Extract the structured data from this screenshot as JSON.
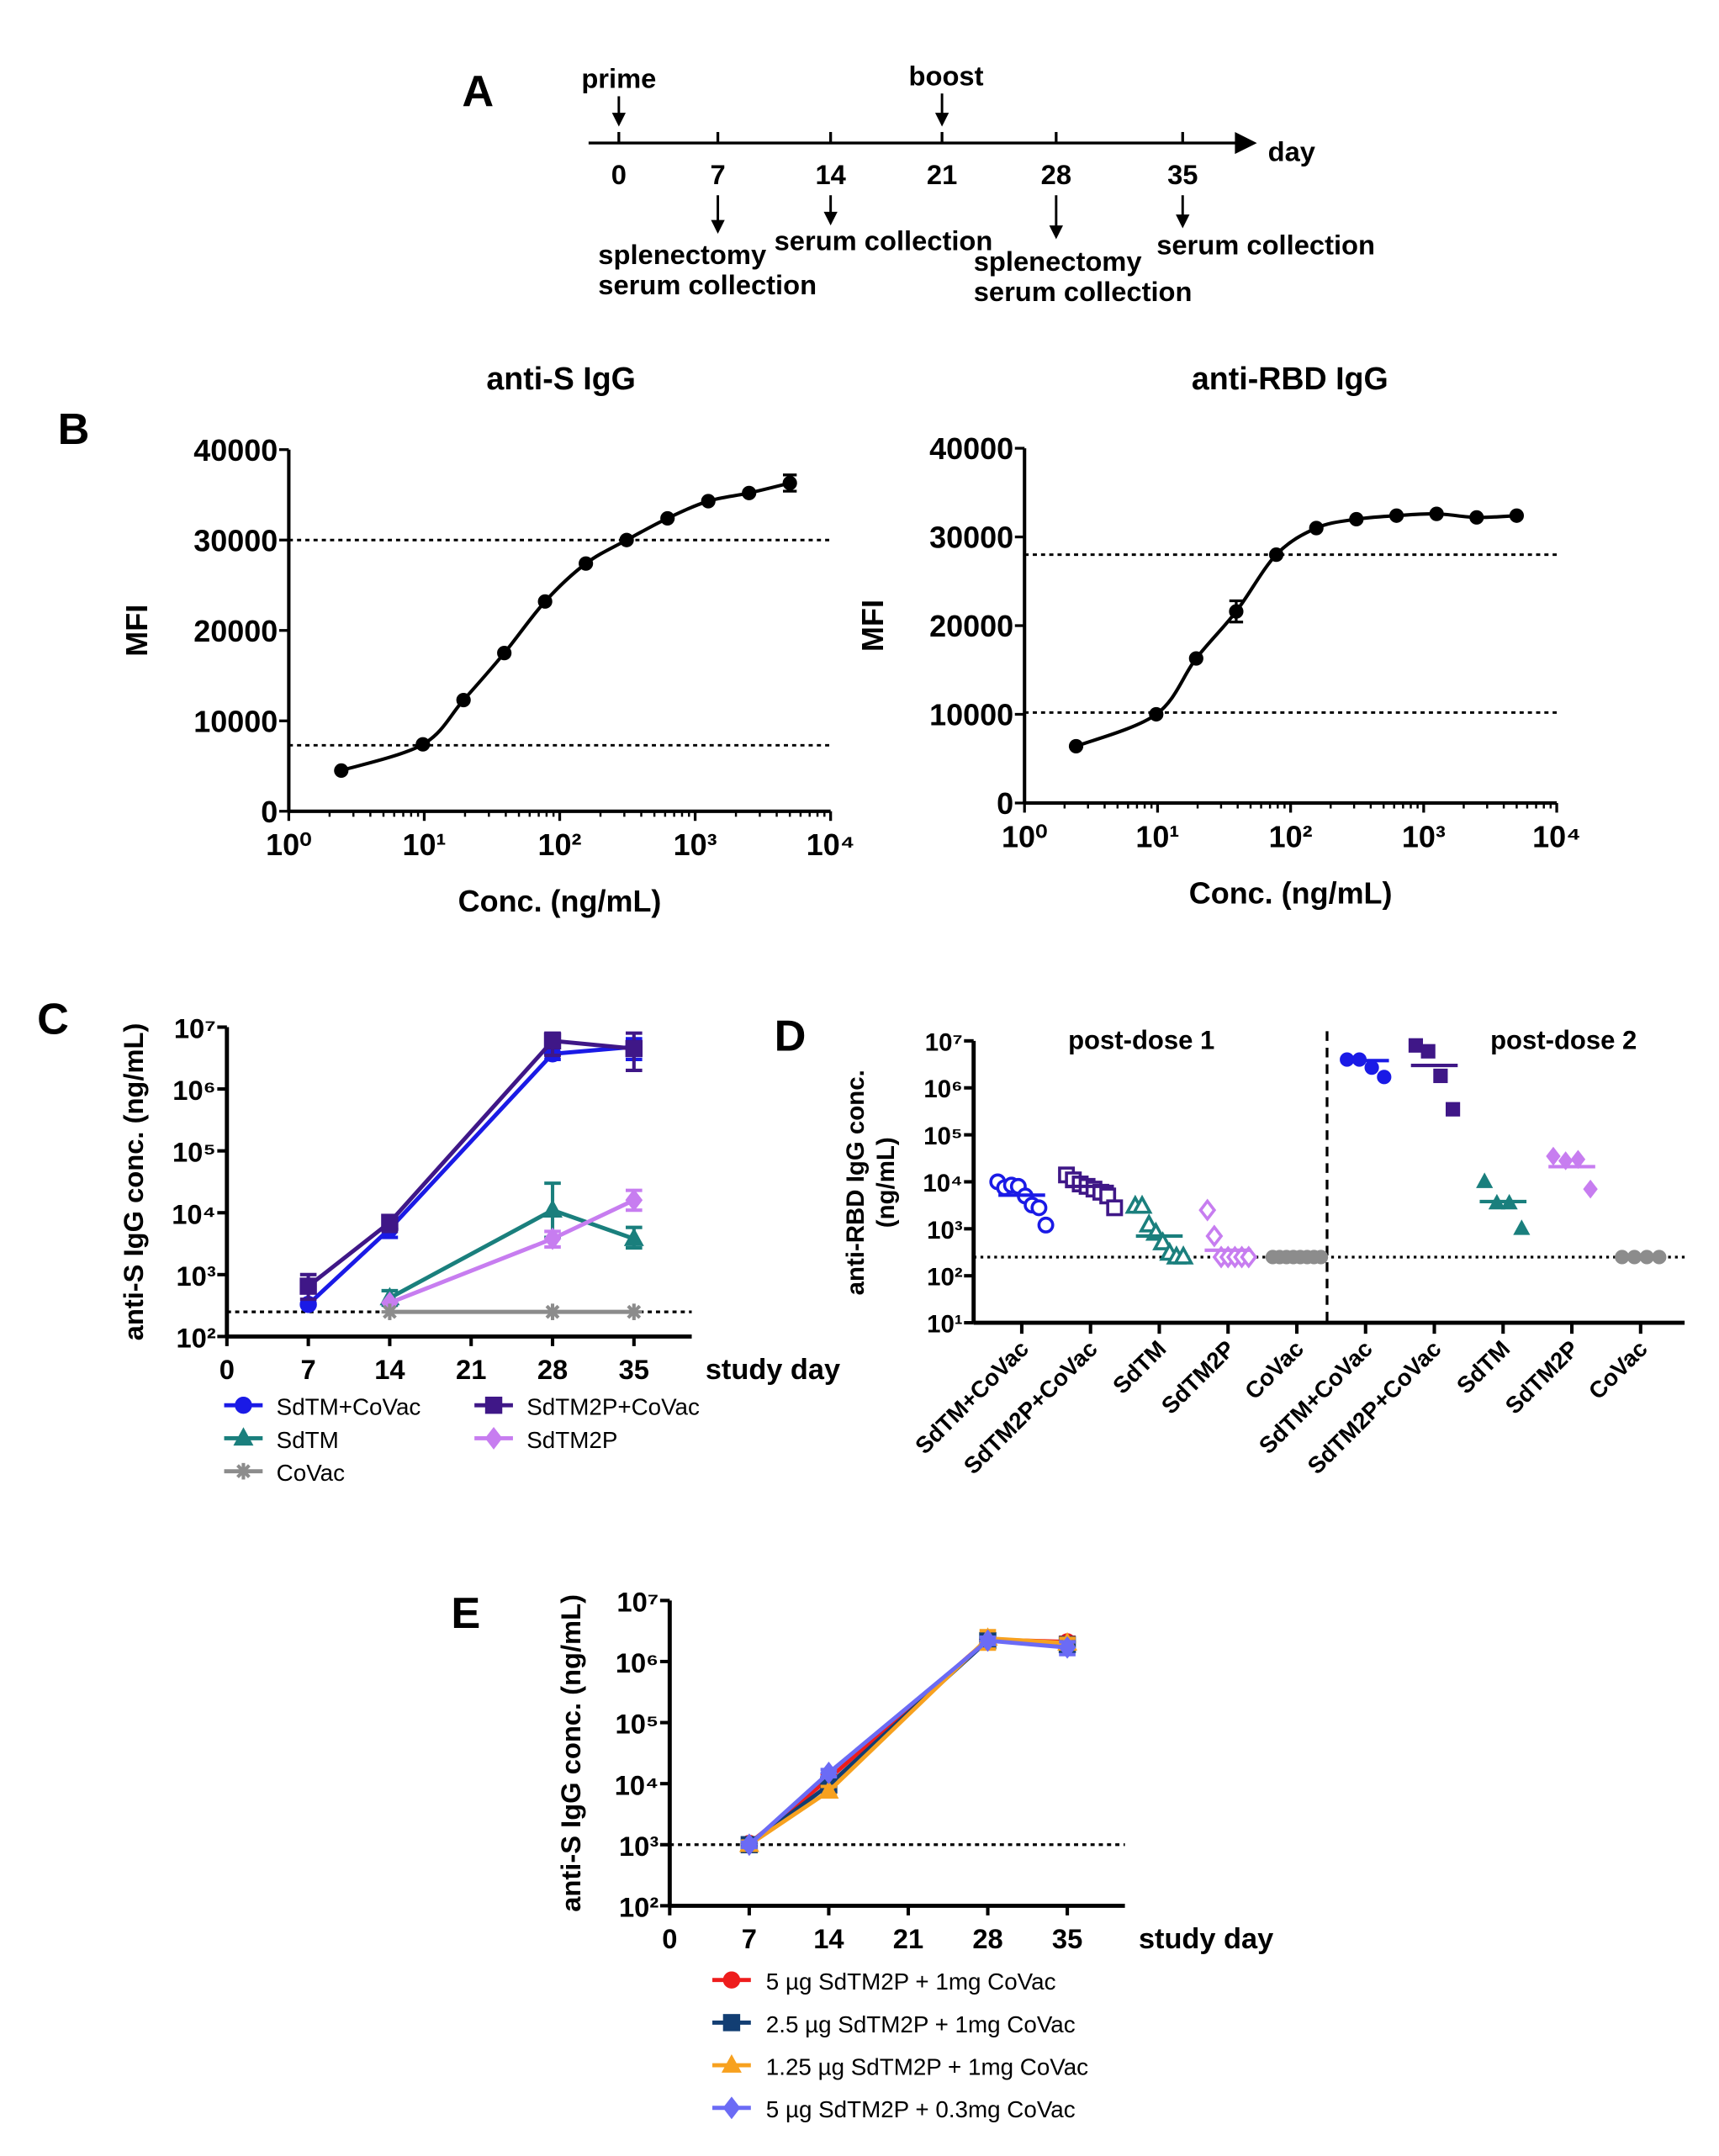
{
  "panel_labels": [
    "A",
    "B",
    "C",
    "D",
    "E"
  ],
  "panel_a": {
    "top_labels": {
      "prime": "prime",
      "boost": "boost"
    },
    "axis_label": "day",
    "days": [
      "0",
      "7",
      "14",
      "21",
      "28",
      "35"
    ],
    "events": {
      "day7": [
        "splenectomy",
        "serum collection"
      ],
      "day14": [
        "serum collection"
      ],
      "day28": [
        "splenectomy",
        "serum collection"
      ],
      "day35": [
        "serum collection"
      ]
    }
  },
  "chart_data": [
    {
      "type": "scatter",
      "panel": "B",
      "title": "anti-S IgG",
      "xlabel": "Conc. (ng/mL)",
      "ylabel": "MFI",
      "xscale": "log",
      "xlim": [
        1,
        10000
      ],
      "ylim": [
        0,
        40000
      ],
      "xticks": [
        "10⁰",
        "10¹",
        "10²",
        "10³",
        "10⁴"
      ],
      "yticks": [
        "0",
        "10000",
        "20000",
        "30000",
        "40000"
      ],
      "fit": "sigmoidal standard curve",
      "reference_lines": [
        30000,
        7300
      ],
      "x": [
        2.44,
        9.77,
        19.5,
        39,
        78,
        156,
        312,
        625,
        1250,
        2500,
        5000
      ],
      "y": [
        4500,
        7400,
        12300,
        17500,
        23200,
        27400,
        30000,
        32400,
        34300,
        35200,
        36300
      ],
      "error": [
        0,
        0,
        0,
        0,
        0,
        0,
        0,
        0,
        0,
        0,
        900
      ]
    },
    {
      "type": "scatter",
      "panel": "B",
      "title": "anti-RBD IgG",
      "xlabel": "Conc. (ng/mL)",
      "ylabel": "MFI",
      "xscale": "log",
      "xlim": [
        1,
        10000
      ],
      "ylim": [
        0,
        40000
      ],
      "xticks": [
        "10⁰",
        "10¹",
        "10²",
        "10³",
        "10⁴"
      ],
      "yticks": [
        "0",
        "10000",
        "20000",
        "30000",
        "40000"
      ],
      "fit": "sigmoidal standard curve",
      "reference_lines": [
        28000,
        10200
      ],
      "x": [
        2.44,
        9.77,
        19.5,
        39,
        78,
        156,
        312,
        625,
        1250,
        2500,
        5000
      ],
      "y": [
        6400,
        10000,
        16300,
        21600,
        28000,
        31000,
        32000,
        32400,
        32600,
        32200,
        32400
      ],
      "error": [
        0,
        0,
        0,
        1200,
        0,
        0,
        0,
        0,
        0,
        0,
        0
      ]
    },
    {
      "type": "line",
      "panel": "C",
      "xlabel": "study day",
      "ylabel": "anti-S IgG conc. (ng/mL)",
      "yscale": "log",
      "ylim": [
        100,
        10000000
      ],
      "xticks": [
        "0",
        "7",
        "14",
        "21",
        "28",
        "35"
      ],
      "yticks": [
        "10²",
        "10³",
        "10⁴",
        "10⁵",
        "10⁶",
        "10⁷"
      ],
      "lod": 250,
      "legend_position": "bottom",
      "series": [
        {
          "name": "SdTM+CoVac",
          "color": "#1a1ae6",
          "marker": "circle",
          "x": [
            7,
            14,
            28,
            35
          ],
          "y": [
            330,
            5500,
            3700000,
            4800000
          ],
          "low": [
            330,
            4000,
            3000000,
            3000000
          ],
          "high": [
            330,
            7500,
            5000000,
            6500000
          ]
        },
        {
          "name": "SdTM2P+CoVac",
          "color": "#3f1787",
          "marker": "square",
          "x": [
            7,
            14,
            28,
            35
          ],
          "y": [
            650,
            7000,
            6000000,
            4500000
          ],
          "low": [
            400,
            5000,
            3500000,
            2000000
          ],
          "high": [
            1000,
            9000,
            8000000,
            8000000
          ]
        },
        {
          "name": "SdTM",
          "color": "#1a7f7d",
          "marker": "triangle",
          "x": [
            14,
            28,
            35
          ],
          "y": [
            420,
            11000,
            3800
          ],
          "low": [
            320,
            4000,
            2700
          ],
          "high": [
            550,
            30000,
            5800
          ]
        },
        {
          "name": "SdTM2P",
          "color": "#c77df0",
          "marker": "diamond",
          "x": [
            14,
            28,
            35
          ],
          "y": [
            350,
            3800,
            16000
          ],
          "low": [
            350,
            2800,
            11000
          ],
          "high": [
            350,
            5000,
            23000
          ]
        },
        {
          "name": "CoVac",
          "color": "#8c8c8c",
          "marker": "star",
          "x": [
            14,
            28,
            35
          ],
          "y": [
            250,
            250,
            250
          ],
          "low": [
            250,
            250,
            250
          ],
          "high": [
            250,
            250,
            250
          ]
        }
      ]
    },
    {
      "type": "scatter",
      "panel": "D",
      "ylabel": [
        "anti-RBD IgG conc.",
        "(ng/mL)"
      ],
      "yscale": "log",
      "ylim": [
        10,
        10000000
      ],
      "yticks": [
        "10¹",
        "10²",
        "10³",
        "10⁴",
        "10⁵",
        "10⁶",
        "10⁷"
      ],
      "lod": 250,
      "section_titles": [
        "post-dose 1",
        "post-dose 2"
      ],
      "categories": [
        "SdTM+CoVac",
        "SdTM2P+CoVac",
        "SdTM",
        "SdTM2P",
        "CoVac",
        "SdTM+CoVac",
        "SdTM2P+CoVac",
        "SdTM",
        "SdTM2P",
        "CoVac"
      ],
      "groups": [
        {
          "color": "#1a1ae6",
          "marker": "circle",
          "filled": false,
          "values": [
            10000,
            7500,
            8500,
            8000,
            5000,
            3200,
            2800,
            1200
          ],
          "median": 5200
        },
        {
          "color": "#3f1787",
          "marker": "square",
          "filled": false,
          "values": [
            14000,
            11000,
            9000,
            8000,
            7000,
            6000,
            5000,
            2800
          ],
          "median": 8000
        },
        {
          "color": "#1a7f7d",
          "marker": "triangle",
          "filled": false,
          "values": [
            3000,
            3000,
            1200,
            800,
            500,
            300,
            250,
            250
          ],
          "median": 700
        },
        {
          "color": "#c77df0",
          "marker": "diamond",
          "filled": false,
          "values": [
            2500,
            700,
            250,
            250,
            250,
            250,
            250
          ],
          "median": 350
        },
        {
          "color": "#8c8c8c",
          "marker": "circle",
          "filled": true,
          "values": [
            250,
            250,
            250,
            250,
            250,
            250,
            250,
            250
          ],
          "median": 250
        },
        {
          "color": "#1a1ae6",
          "marker": "circle",
          "filled": true,
          "values": [
            4000000,
            4000000,
            2700000,
            1700000
          ],
          "median": 3800000
        },
        {
          "color": "#3f1787",
          "marker": "square",
          "filled": true,
          "values": [
            8000000,
            6000000,
            1800000,
            350000
          ],
          "median": 3000000
        },
        {
          "color": "#1a7f7d",
          "marker": "triangle",
          "filled": true,
          "values": [
            10000,
            3500,
            3500,
            1000
          ],
          "median": 3800
        },
        {
          "color": "#c77df0",
          "marker": "diamond",
          "filled": true,
          "values": [
            35000,
            28000,
            30000,
            7000
          ],
          "median": 21000
        },
        {
          "color": "#8c8c8c",
          "marker": "circle",
          "filled": true,
          "values": [
            250,
            250,
            250,
            250
          ],
          "median": 250
        }
      ]
    },
    {
      "type": "line",
      "panel": "E",
      "xlabel": "study day",
      "ylabel": "anti-S IgG conc. (ng/mL)",
      "yscale": "log",
      "ylim": [
        100,
        10000000
      ],
      "xticks": [
        "0",
        "7",
        "14",
        "21",
        "28",
        "35"
      ],
      "yticks": [
        "10²",
        "10³",
        "10⁴",
        "10⁵",
        "10⁶",
        "10⁷"
      ],
      "lod": 1000,
      "legend_position": "bottom",
      "series": [
        {
          "name": "5 µg SdTM2P + 1mg CoVac",
          "color": "#ee1c1c",
          "marker": "circle",
          "x": [
            7,
            14,
            28,
            35
          ],
          "y": [
            1050,
            12000,
            2300000,
            2100000
          ],
          "low": [
            950,
            10000,
            1800000,
            1700000
          ],
          "high": [
            1150,
            14000,
            2800000,
            2500000
          ]
        },
        {
          "name": "2.5 µg SdTM2P + 1mg CoVac",
          "color": "#123e73",
          "marker": "square",
          "x": [
            7,
            14,
            28,
            35
          ],
          "y": [
            1000,
            9500,
            2200000,
            1900000
          ],
          "low": [
            900,
            8000,
            1800000,
            1500000
          ],
          "high": [
            1100,
            11000,
            2600000,
            2300000
          ]
        },
        {
          "name": "1.25 µg SdTM2P + 1mg CoVac",
          "color": "#f7a11f",
          "marker": "triangle",
          "x": [
            7,
            14,
            28,
            35
          ],
          "y": [
            1000,
            7500,
            2400000,
            2000000
          ],
          "low": [
            850,
            6500,
            1600000,
            1600000
          ],
          "high": [
            1150,
            9000,
            3200000,
            2400000
          ]
        },
        {
          "name": "5 µg SdTM2P + 0.3mg CoVac",
          "color": "#6b6bf5",
          "marker": "diamond",
          "x": [
            7,
            14,
            28,
            35
          ],
          "y": [
            1000,
            15000,
            2200000,
            1700000
          ],
          "low": [
            900,
            13000,
            1900000,
            1300000
          ],
          "high": [
            1100,
            17000,
            2500000,
            2100000
          ]
        }
      ]
    }
  ]
}
